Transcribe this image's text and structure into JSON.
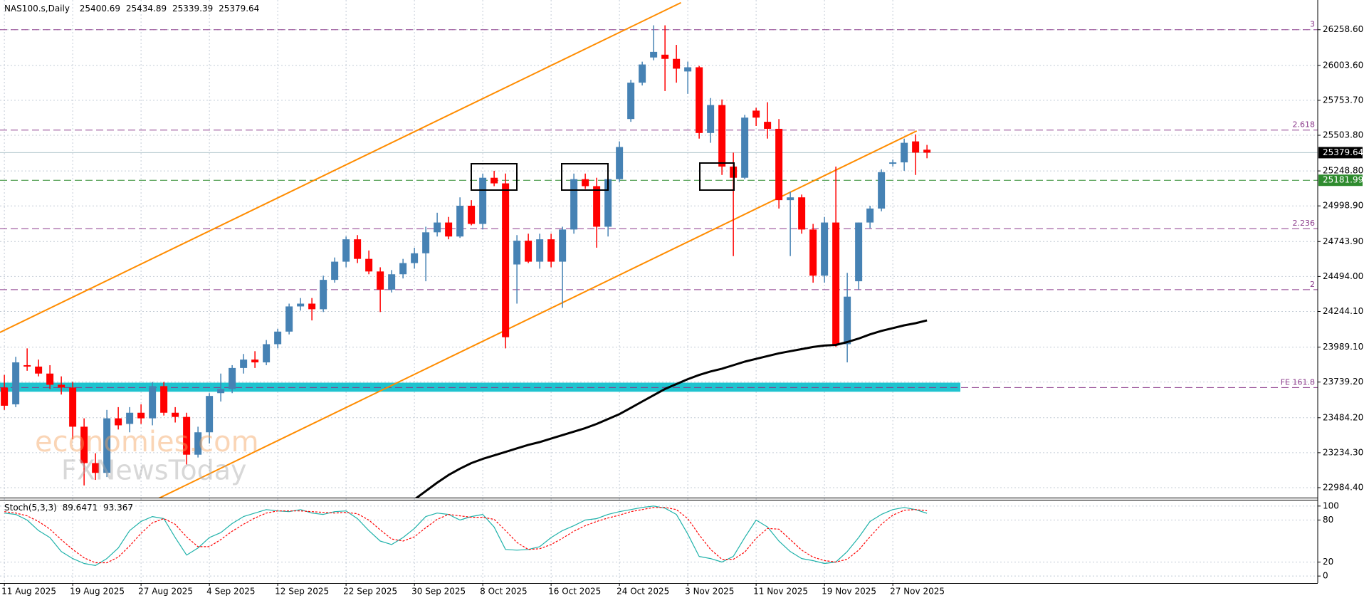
{
  "chart_data": [
    {
      "type": "candlestick",
      "title": "NAS100.s,Daily",
      "watermark": [
        "economies.com",
        "FXNewsToday"
      ],
      "categories": [
        "11 Aug 2025",
        null,
        null,
        null,
        null,
        null,
        "19 Aug 2025",
        null,
        null,
        null,
        null,
        null,
        "27 Aug 2025",
        null,
        null,
        null,
        null,
        null,
        "4 Sep 2025",
        null,
        null,
        null,
        null,
        null,
        "12 Sep 2025",
        null,
        null,
        null,
        null,
        null,
        "22 Sep 2025",
        null,
        null,
        null,
        null,
        null,
        "30 Sep 2025",
        null,
        null,
        null,
        null,
        null,
        "8 Oct 2025",
        null,
        null,
        null,
        null,
        null,
        "16 Oct 2025",
        null,
        null,
        null,
        null,
        null,
        "24 Oct 2025",
        null,
        null,
        null,
        null,
        null,
        "3 Nov 2025",
        null,
        null,
        null,
        null,
        null,
        "11 Nov 2025",
        null,
        null,
        null,
        null,
        null,
        "19 Nov 2025",
        null,
        null,
        null,
        null,
        null,
        "27 Nov 2025",
        null,
        null,
        null
      ],
      "open": [
        23700,
        23580,
        23860,
        23850,
        23800,
        23720,
        23700,
        23420,
        23160,
        23090,
        23480,
        23440,
        23520,
        23480,
        23710,
        23520,
        23490,
        23220,
        23380,
        23660,
        23690,
        23840,
        23900,
        23880,
        24010,
        24100,
        24280,
        24300,
        24260,
        24470,
        24600,
        24760,
        24620,
        24530,
        24400,
        24510,
        24590,
        24660,
        24810,
        24880,
        24780,
        25000,
        24870,
        25200,
        25160,
        24580,
        24750,
        24600,
        24760,
        24600,
        24830,
        25190,
        25140,
        24850,
        25190,
        25620,
        25880,
        26060,
        26080,
        26050,
        25960,
        25990,
        25520,
        25720,
        25280,
        25200,
        25680,
        25600,
        25550,
        25040,
        25060,
        24830,
        24500,
        24880,
        24010,
        24460,
        24880,
        24980,
        25300,
        25310,
        25460,
        25400.69
      ],
      "high": [
        23790,
        23920,
        23980,
        23900,
        23860,
        23780,
        23740,
        23480,
        23230,
        23540,
        23560,
        23560,
        23580,
        23740,
        23740,
        23560,
        23520,
        23420,
        23660,
        23800,
        23860,
        23940,
        23960,
        24040,
        24120,
        24300,
        24340,
        24340,
        24500,
        24630,
        24780,
        24790,
        24680,
        24560,
        24540,
        24620,
        24700,
        24850,
        24950,
        24920,
        25060,
        25040,
        25230,
        25250,
        25230,
        24790,
        24800,
        24800,
        24800,
        24850,
        25230,
        25230,
        25200,
        25220,
        25460,
        25900,
        26030,
        26290,
        26290,
        26150,
        26030,
        26000,
        25770,
        25760,
        25380,
        25650,
        25700,
        25740,
        25620,
        25100,
        25080,
        24870,
        24920,
        25280,
        24520,
        24880,
        25000,
        25260,
        25330,
        25480,
        25510,
        25434.89
      ],
      "low": [
        23540,
        23560,
        23820,
        23780,
        23690,
        23650,
        23330,
        23000,
        23040,
        23060,
        23400,
        23380,
        23440,
        23430,
        23500,
        23450,
        23150,
        23200,
        23300,
        23600,
        23660,
        23800,
        23840,
        23860,
        23980,
        24080,
        24250,
        24180,
        24240,
        24450,
        24560,
        24590,
        24510,
        24240,
        24380,
        24480,
        24550,
        24460,
        24780,
        24760,
        24770,
        24860,
        24830,
        25140,
        23980,
        24300,
        24590,
        24550,
        24560,
        24270,
        24800,
        25120,
        24700,
        24780,
        25170,
        25600,
        25860,
        26040,
        25820,
        25880,
        25800,
        25480,
        25450,
        25220,
        24640,
        25190,
        25570,
        25480,
        24980,
        24640,
        24800,
        24450,
        24450,
        23990,
        23880,
        24400,
        24840,
        24960,
        25280,
        25250,
        25220,
        25339.39
      ],
      "close": [
        23570,
        23880,
        23850,
        23800,
        23720,
        23700,
        23420,
        23160,
        23090,
        23480,
        23430,
        23520,
        23480,
        23710,
        23520,
        23490,
        23220,
        23380,
        23640,
        23690,
        23840,
        23900,
        23880,
        24010,
        24100,
        24280,
        24300,
        24260,
        24470,
        24600,
        24760,
        24620,
        24530,
        24400,
        24510,
        24590,
        24660,
        24810,
        24880,
        24780,
        25000,
        24870,
        25200,
        25160,
        24060,
        24750,
        24600,
        24760,
        24600,
        24830,
        25190,
        25140,
        24850,
        25190,
        25420,
        25880,
        26010,
        26100,
        26050,
        25980,
        25990,
        25520,
        25720,
        25280,
        25200,
        25630,
        25630,
        25550,
        25040,
        25060,
        24830,
        24500,
        24880,
        24010,
        24350,
        24880,
        24980,
        25240,
        25310,
        25450,
        25380,
        25379.64
      ],
      "up_color": "#4682b4",
      "down_color": "#ff0000",
      "series": [
        {
          "color": "#000000",
          "values": [
            null,
            null,
            null,
            null,
            null,
            null,
            null,
            null,
            null,
            null,
            null,
            null,
            null,
            null,
            null,
            null,
            null,
            null,
            null,
            null,
            null,
            null,
            null,
            null,
            null,
            null,
            null,
            null,
            null,
            null,
            null,
            null,
            null,
            null,
            null,
            null,
            22900,
            22960,
            23020,
            23075,
            23120,
            23160,
            23190,
            23215,
            23240,
            23265,
            23290,
            23310,
            23335,
            23360,
            23385,
            23410,
            23440,
            23475,
            23510,
            23555,
            23600,
            23645,
            23690,
            23725,
            23760,
            23790,
            23815,
            23835,
            23860,
            23885,
            23905,
            23925,
            23945,
            23960,
            23975,
            23990,
            24000,
            24005,
            24025,
            24050,
            24080,
            24105,
            24125,
            24145,
            24160,
            24180
          ]
        }
      ],
      "levels": [
        {
          "value": 26258.6,
          "label": "3"
        },
        {
          "value": 25541,
          "label": "2.618"
        },
        {
          "value": 24836,
          "label": "2.236"
        },
        {
          "value": 24400,
          "label": "2"
        },
        {
          "value": 23700,
          "label": "FE 161.8"
        }
      ],
      "level_color": "#8b3a8b",
      "support": {
        "value": 25181.99,
        "color": "#2e8b2e"
      },
      "zone": {
        "from": 23670,
        "to": 23735,
        "color": "#1fc3cf"
      },
      "trendlines": [
        {
          "x": [
            -0.4,
            59.4
          ],
          "y": [
            24094,
            26452
          ]
        },
        {
          "x": [
            13.4,
            80.1
          ],
          "y": [
            22902,
            25535
          ]
        }
      ],
      "trendline_color": "#ff8c00",
      "ylim": [
        22913,
        26471
      ],
      "yticks": [
        {
          "value": 26258.6,
          "label": "26258.60"
        },
        {
          "value": 26003.6,
          "label": "26003.60"
        },
        {
          "value": 25753.7,
          "label": "25753.70"
        },
        {
          "value": 25503.8,
          "label": "25503.80"
        },
        {
          "value": 25248.8,
          "label": "25248.80"
        },
        {
          "value": 24998.9,
          "label": "24998.90"
        },
        {
          "value": 24743.9,
          "label": "24743.90"
        },
        {
          "value": 24494,
          "label": "24494.00"
        },
        {
          "value": 24244.1,
          "label": "24244.10"
        },
        {
          "value": 23989.1,
          "label": "23989.10"
        },
        {
          "value": 23739.2,
          "label": "23739.20"
        },
        {
          "value": 23484.2,
          "label": "23484.20"
        },
        {
          "value": 23234.3,
          "label": "23234.30"
        },
        {
          "value": 22984.4,
          "label": "22984.40"
        }
      ],
      "grid": true
    },
    {
      "type": "line",
      "title": "Stoch(5,3,3)",
      "series": [
        {
          "color": "#20b2aa",
          "values": [
            90,
            88,
            80,
            65,
            55,
            35,
            25,
            18,
            15,
            25,
            40,
            65,
            78,
            85,
            82,
            55,
            30,
            40,
            55,
            62,
            75,
            85,
            90,
            95,
            93,
            92,
            95,
            90,
            88,
            92,
            93,
            82,
            65,
            50,
            45,
            55,
            68,
            85,
            90,
            88,
            80,
            85,
            88,
            70,
            38,
            37,
            38,
            42,
            55,
            65,
            72,
            80,
            82,
            88,
            92,
            95,
            98,
            100,
            97,
            88,
            60,
            28,
            25,
            20,
            28,
            55,
            80,
            70,
            50,
            35,
            25,
            22,
            18,
            20,
            35,
            55,
            78,
            88,
            95,
            98,
            95,
            89.6471
          ]
        },
        {
          "color": "#ff0000",
          "dashed": true,
          "values": [
            92,
            90,
            86,
            78,
            67,
            52,
            38,
            26,
            19,
            19,
            27,
            43,
            61,
            76,
            82,
            74,
            56,
            42,
            42,
            52,
            64,
            74,
            83,
            90,
            93,
            93,
            93,
            92,
            91,
            90,
            91,
            89,
            80,
            66,
            53,
            50,
            56,
            69,
            81,
            88,
            86,
            84,
            84,
            81,
            65,
            48,
            38,
            39,
            45,
            54,
            64,
            72,
            78,
            83,
            87,
            92,
            95,
            98,
            98,
            95,
            82,
            59,
            38,
            24,
            24,
            34,
            54,
            68,
            67,
            52,
            37,
            27,
            22,
            20,
            24,
            37,
            56,
            74,
            87,
            94,
            95,
            93.367
          ]
        }
      ],
      "ylim": [
        -10,
        109
      ],
      "yticks": [
        0,
        20,
        80,
        100
      ],
      "grid": true
    }
  ]
}
